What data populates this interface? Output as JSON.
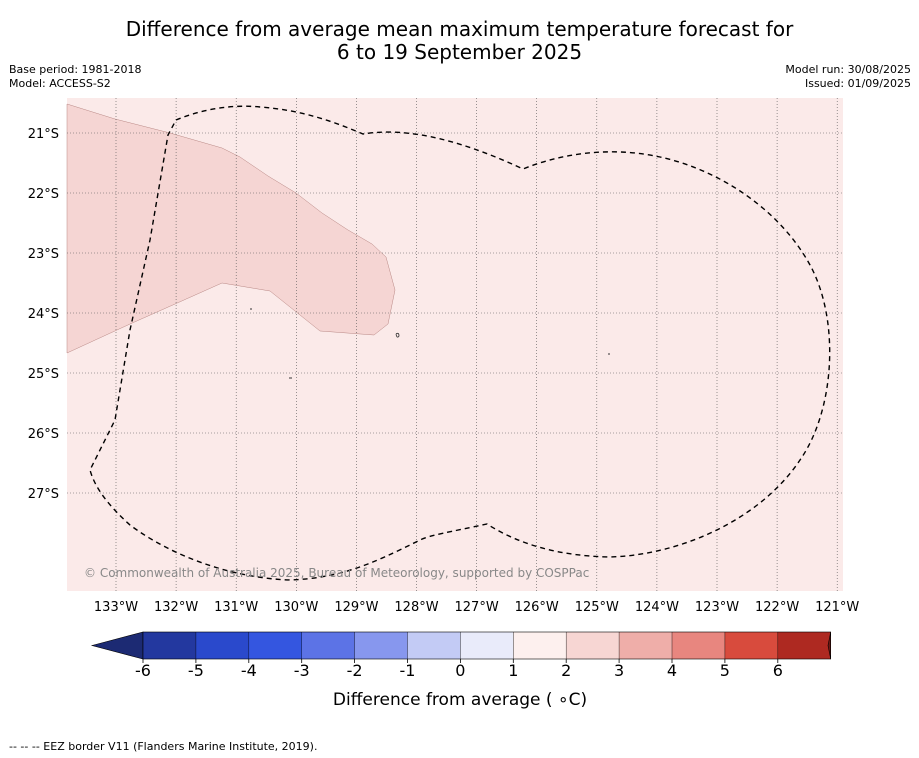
{
  "title": {
    "line1": "Difference from average mean maximum temperature forecast for",
    "line2": "6 to 19 September 2025"
  },
  "meta_left": {
    "base_period": "Base period: 1981-2018",
    "model": "Model: ACCESS-S2"
  },
  "meta_right": {
    "model_run": "Model run: 30/08/2025",
    "issued": "Issued: 01/09/2025"
  },
  "map": {
    "copyright": "© Commonwealth of Australia 2025, Bureau of Meteorology, supported by COSPPac",
    "background_color": "#fbeae9",
    "anomaly_color": "#f5d5d3",
    "lon_labels": [
      "133°W",
      "132°W",
      "131°W",
      "130°W",
      "129°W",
      "128°W",
      "127°W",
      "126°W",
      "125°W",
      "124°W",
      "123°W",
      "122°W",
      "121°W"
    ],
    "lat_labels": [
      "21°S",
      "22°S",
      "23°S",
      "24°S",
      "25°S",
      "26°S",
      "27°S"
    ]
  },
  "colorbar": {
    "label": "Difference from average ( ∘C)",
    "ticks": [
      "-6",
      "-5",
      "-4",
      "-3",
      "-2",
      "-1",
      "0",
      "1",
      "2",
      "3",
      "4",
      "5",
      "6"
    ],
    "colors": [
      "#23389f",
      "#2a49cc",
      "#3456e0",
      "#5c73e6",
      "#8797ee",
      "#c3cbf5",
      "#e9ebfa",
      "#fdf0ee",
      "#f7d6d3",
      "#efaea9",
      "#e8867f",
      "#d84b3d",
      "#ae2921"
    ],
    "extend_low_color": "#1c2a73",
    "extend_high_color": "#6e1814"
  },
  "footer": {
    "legend": "--  --  -- EEZ border V11 (Flanders Marine Institute, 2019)."
  }
}
